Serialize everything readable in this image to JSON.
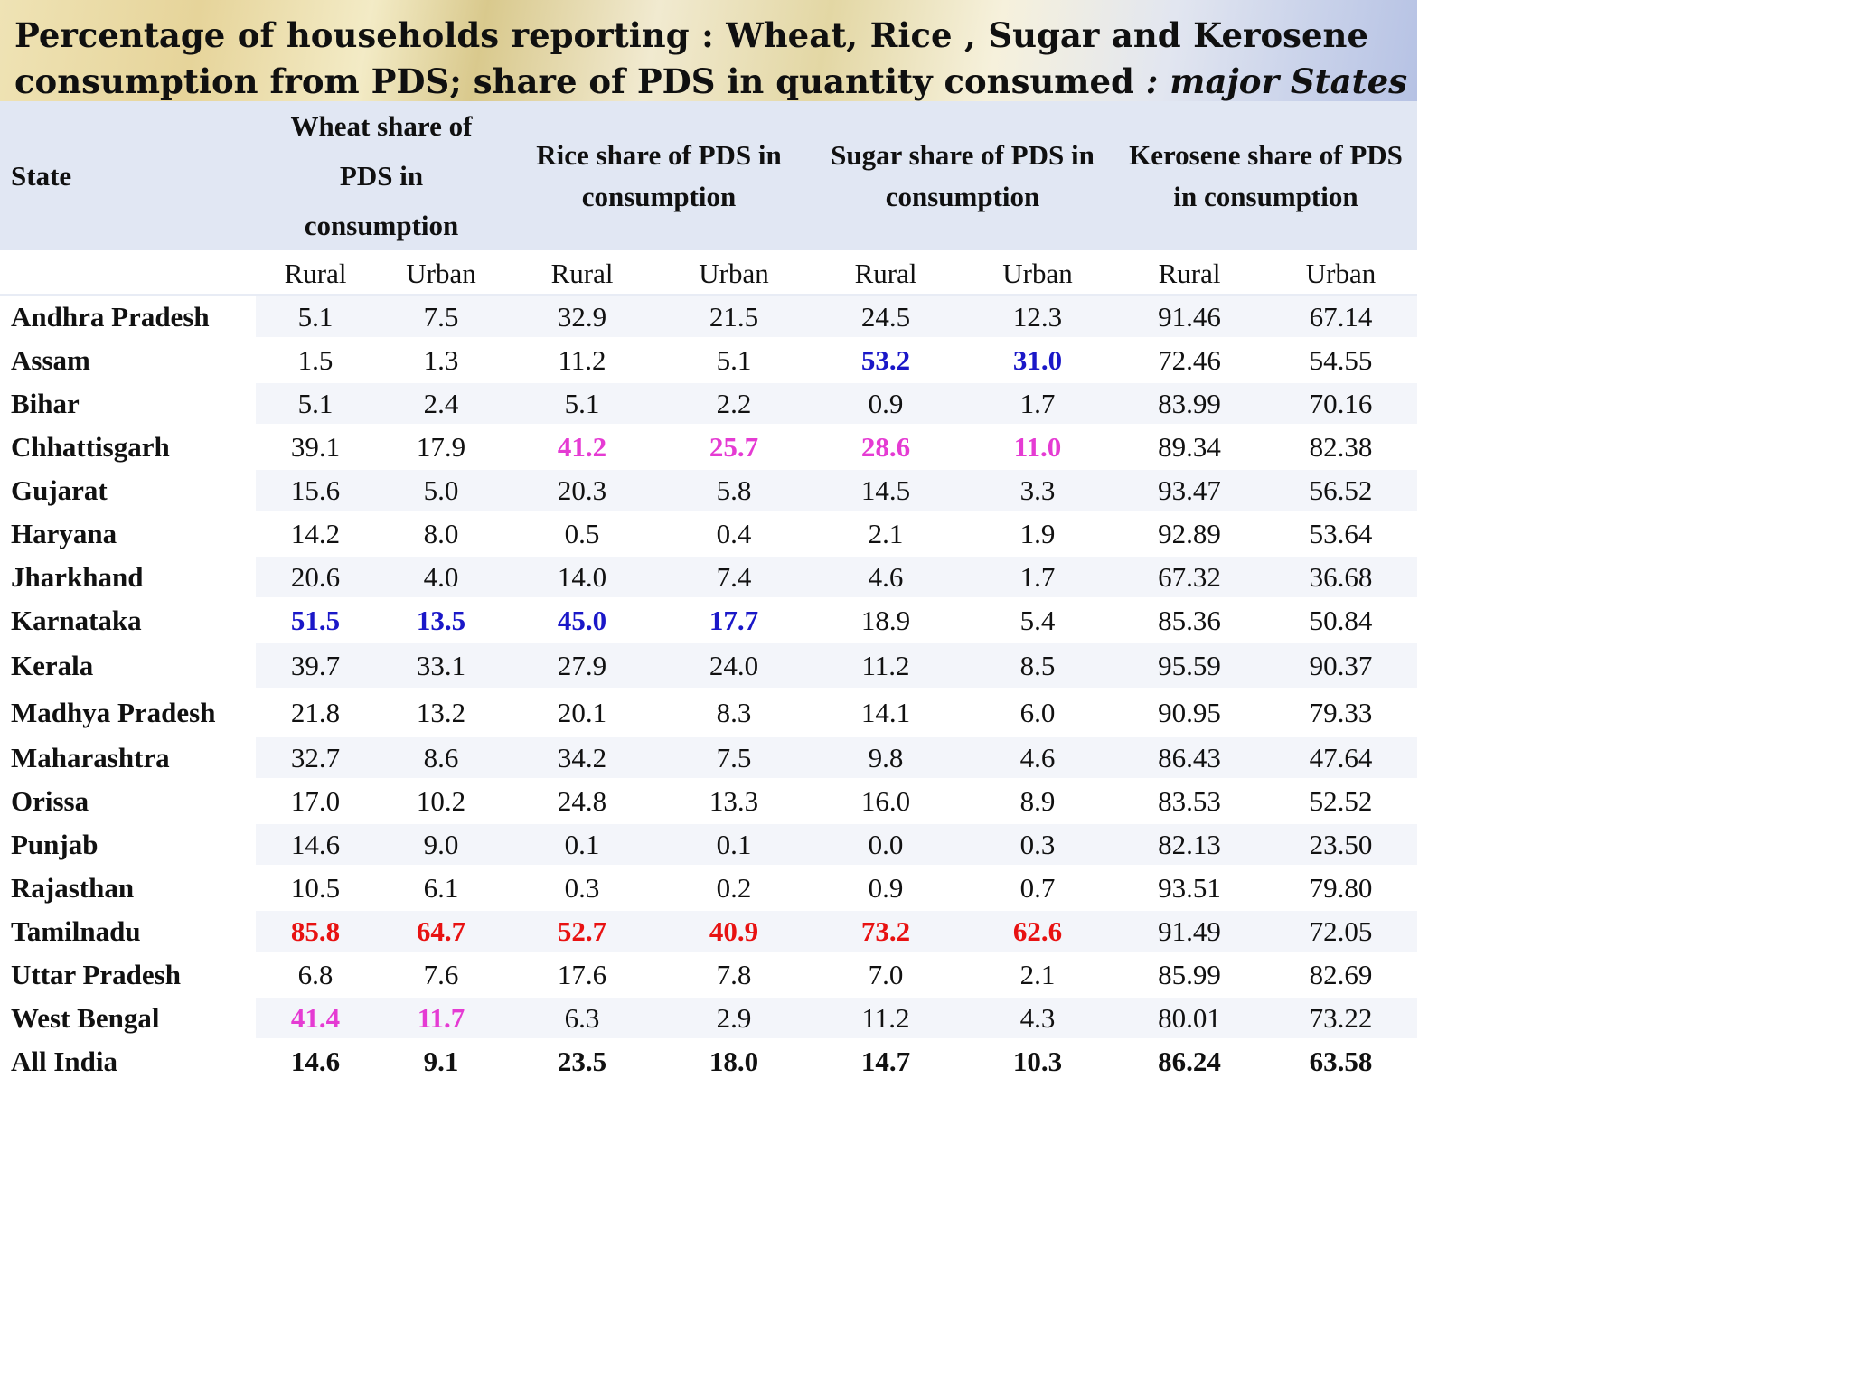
{
  "title": {
    "line1": "Percentage of households reporting : Wheat, Rice , Sugar and Kerosene",
    "line2_prefix": "consumption from PDS; share of PDS in quantity consumed",
    "line2_suffix": " : major States"
  },
  "colors": {
    "blue": "#1a17c8",
    "pink": "#e53bd3",
    "red": "#e81212",
    "header_bg": "#e1e7f3"
  },
  "chart_data": {
    "type": "table",
    "columns": {
      "state": "State",
      "wheat": "Wheat share of PDS in consumption",
      "rice": "Rice share of PDS in consumption",
      "sugar": "Sugar share of PDS in consumption",
      "kerosene": "Kerosene share of PDS in consumption"
    },
    "subheaders": {
      "rural": "Rural",
      "urban": "Urban"
    },
    "rows": [
      {
        "state": "Andhra Pradesh",
        "values": [
          "5.1",
          "7.5",
          "32.9",
          "21.5",
          "24.5",
          "12.3",
          "91.46",
          "67.14"
        ],
        "hl": [
          "",
          "",
          "",
          "",
          "",
          "",
          "",
          ""
        ]
      },
      {
        "state": "Assam",
        "values": [
          "1.5",
          "1.3",
          "11.2",
          "5.1",
          "53.2",
          "31.0",
          "72.46",
          "54.55"
        ],
        "hl": [
          "",
          "",
          "",
          "",
          "blue",
          "blue",
          "",
          ""
        ]
      },
      {
        "state": "Bihar",
        "values": [
          "5.1",
          "2.4",
          "5.1",
          "2.2",
          "0.9",
          "1.7",
          "83.99",
          "70.16"
        ],
        "hl": [
          "",
          "",
          "",
          "",
          "",
          "",
          "",
          ""
        ]
      },
      {
        "state": "Chhattisgarh",
        "values": [
          "39.1",
          "17.9",
          "41.2",
          "25.7",
          "28.6",
          "11.0",
          "89.34",
          "82.38"
        ],
        "hl": [
          "",
          "",
          "pink",
          "pink",
          "pink",
          "pink",
          "",
          ""
        ]
      },
      {
        "state": "Gujarat",
        "values": [
          "15.6",
          "5.0",
          "20.3",
          "5.8",
          "14.5",
          "3.3",
          "93.47",
          "56.52"
        ],
        "hl": [
          "",
          "",
          "",
          "",
          "",
          "",
          "",
          ""
        ]
      },
      {
        "state": "Haryana",
        "values": [
          "14.2",
          "8.0",
          "0.5",
          "0.4",
          "2.1",
          "1.9",
          "92.89",
          "53.64"
        ],
        "hl": [
          "",
          "",
          "",
          "",
          "",
          "",
          "",
          ""
        ]
      },
      {
        "state": "Jharkhand",
        "values": [
          "20.6",
          "4.0",
          "14.0",
          "7.4",
          "4.6",
          "1.7",
          "67.32",
          "36.68"
        ],
        "hl": [
          "",
          "",
          "",
          "",
          "",
          "",
          "",
          ""
        ]
      },
      {
        "state": "Karnataka",
        "values": [
          "51.5",
          "13.5",
          "45.0",
          "17.7",
          "18.9",
          "5.4",
          "85.36",
          "50.84"
        ],
        "hl": [
          "blue",
          "blue",
          "blue",
          "blue",
          "",
          "",
          "",
          ""
        ]
      },
      {
        "state": "Kerala",
        "values": [
          "39.7",
          "33.1",
          "27.9",
          "24.0",
          "11.2",
          "8.5",
          "95.59",
          "90.37"
        ],
        "hl": [
          "",
          "",
          "",
          "",
          "",
          "",
          "",
          ""
        ]
      },
      {
        "state": "Madhya Pradesh",
        "values": [
          "21.8",
          "13.2",
          "20.1",
          "8.3",
          "14.1",
          "6.0",
          "90.95",
          "79.33"
        ],
        "hl": [
          "",
          "",
          "",
          "",
          "",
          "",
          "",
          ""
        ]
      },
      {
        "state": "Maharashtra",
        "values": [
          "32.7",
          "8.6",
          "34.2",
          "7.5",
          "9.8",
          "4.6",
          "86.43",
          "47.64"
        ],
        "hl": [
          "",
          "",
          "",
          "",
          "",
          "",
          "",
          ""
        ]
      },
      {
        "state": "Orissa",
        "values": [
          "17.0",
          "10.2",
          "24.8",
          "13.3",
          "16.0",
          "8.9",
          "83.53",
          "52.52"
        ],
        "hl": [
          "",
          "",
          "",
          "",
          "",
          "",
          "",
          ""
        ]
      },
      {
        "state": "Punjab",
        "values": [
          "14.6",
          "9.0",
          "0.1",
          "0.1",
          "0.0",
          "0.3",
          "82.13",
          "23.50"
        ],
        "hl": [
          "",
          "",
          "",
          "",
          "",
          "",
          "",
          ""
        ]
      },
      {
        "state": "Rajasthan",
        "values": [
          "10.5",
          "6.1",
          "0.3",
          "0.2",
          "0.9",
          "0.7",
          "93.51",
          "79.80"
        ],
        "hl": [
          "",
          "",
          "",
          "",
          "",
          "",
          "",
          ""
        ]
      },
      {
        "state": "Tamilnadu",
        "values": [
          "85.8",
          "64.7",
          "52.7",
          "40.9",
          "73.2",
          "62.6",
          "91.49",
          "72.05"
        ],
        "hl": [
          "red",
          "red",
          "red",
          "red",
          "red",
          "red",
          "",
          ""
        ]
      },
      {
        "state": "Uttar Pradesh",
        "values": [
          "6.8",
          "7.6",
          "17.6",
          "7.8",
          "7.0",
          "2.1",
          "85.99",
          "82.69"
        ],
        "hl": [
          "",
          "",
          "",
          "",
          "",
          "",
          "",
          ""
        ]
      },
      {
        "state": "West Bengal",
        "values": [
          "41.4",
          "11.7",
          "6.3",
          "2.9",
          "11.2",
          "4.3",
          "80.01",
          "73.22"
        ],
        "hl": [
          "pink",
          "pink",
          "",
          "",
          "",
          "",
          "",
          ""
        ]
      }
    ],
    "total": {
      "state": "All India",
      "values": [
        "14.6",
        "9.1",
        "23.5",
        "18.0",
        "14.7",
        "10.3",
        "86.24",
        "63.58"
      ]
    }
  }
}
